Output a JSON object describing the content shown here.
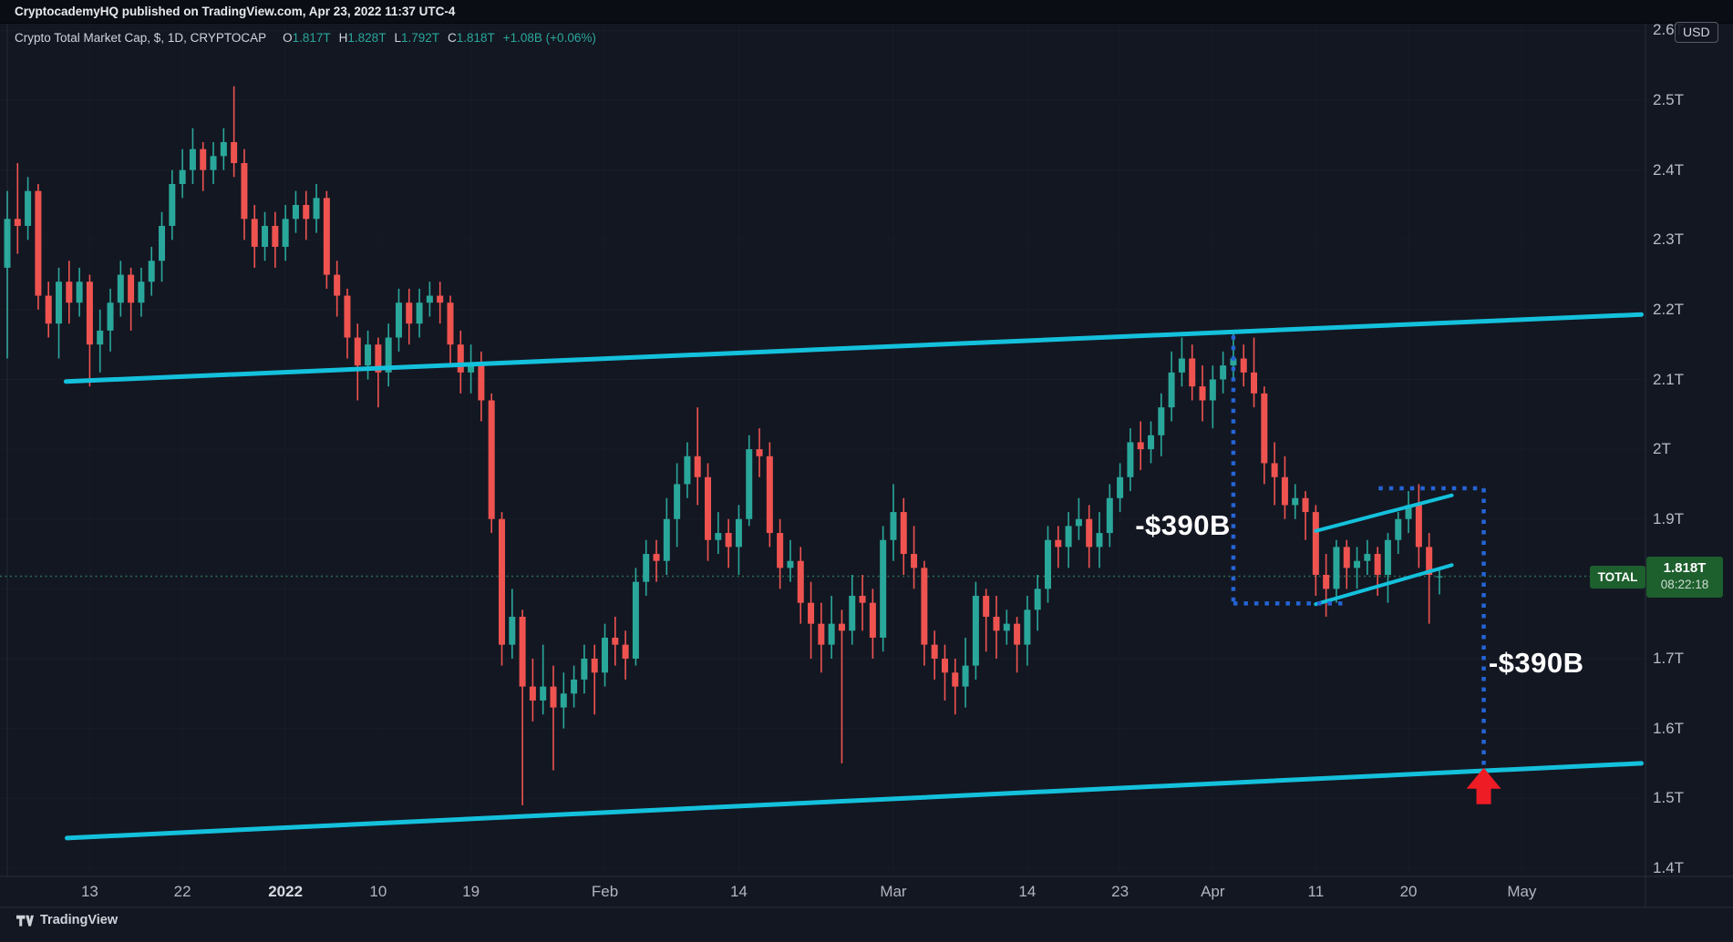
{
  "banner": {
    "text": "CryptocademyHQ published on TradingView.com, Apr 23, 2022 11:37 UTC-4"
  },
  "legend": {
    "title": "Crypto Total Market Cap, $, 1D, CRYPTOCAP",
    "items": [
      {
        "label": "O",
        "value": "1.817T"
      },
      {
        "label": "H",
        "value": "1.828T"
      },
      {
        "label": "L",
        "value": "1.792T"
      },
      {
        "label": "C",
        "value": "1.818T"
      }
    ],
    "change": "+1.08B (+0.06%)"
  },
  "price_scale": {
    "currency_button": "USD",
    "tick_values": [
      1.4,
      1.5,
      1.6,
      1.7,
      1.8,
      1.9,
      2.0,
      2.1,
      2.2,
      2.3,
      2.4,
      2.5,
      2.6
    ],
    "total_badge": "TOTAL",
    "last_price_badge": {
      "price": "1.818T",
      "countdown": "08:22:18"
    }
  },
  "time_scale": {
    "ticks": [
      {
        "label": "13",
        "date": "2021-12-13",
        "bold": false
      },
      {
        "label": "22",
        "date": "2021-12-22",
        "bold": false
      },
      {
        "label": "2022",
        "date": "2022-01-01",
        "bold": true
      },
      {
        "label": "10",
        "date": "2022-01-10",
        "bold": false
      },
      {
        "label": "19",
        "date": "2022-01-19",
        "bold": false
      },
      {
        "label": "Feb",
        "date": "2022-02-01",
        "bold": false
      },
      {
        "label": "14",
        "date": "2022-02-14",
        "bold": false
      },
      {
        "label": "Mar",
        "date": "2022-03-01",
        "bold": false
      },
      {
        "label": "14",
        "date": "2022-03-14",
        "bold": false
      },
      {
        "label": "23",
        "date": "2022-03-23",
        "bold": false
      },
      {
        "label": "Apr",
        "date": "2022-04-01",
        "bold": false
      },
      {
        "label": "11",
        "date": "2022-04-11",
        "bold": false
      },
      {
        "label": "20",
        "date": "2022-04-20",
        "bold": false
      },
      {
        "label": "May",
        "date": "2022-05-01",
        "bold": false
      }
    ]
  },
  "logo": {
    "text": "TradingView"
  },
  "colors": {
    "background": "#131722",
    "up": "#2aa79b",
    "down": "#ef5350",
    "trendline": "#14c1dc",
    "measure_dots": "#2464d4",
    "price_line": "#2a6a4f",
    "badge_green": "#1d5f2d",
    "arrow_red": "#ee1c25",
    "axis_text": "#b2b5be",
    "border": "#2a2e39"
  },
  "chart_data": {
    "type": "candlestick",
    "title": "Crypto Total Market Cap",
    "symbol": "CRYPTOCAP:TOTAL",
    "interval": "1D",
    "currency": "USD",
    "units": "trillions of USD",
    "xlim": [
      "2021-12-05",
      "2022-05-13"
    ],
    "ylim": [
      1.388,
      2.611
    ],
    "grid": false,
    "last_price": 1.818,
    "start_date": "2021-12-05",
    "candles_ohlc": [
      [
        2.26,
        2.37,
        2.13,
        2.33
      ],
      [
        2.33,
        2.41,
        2.28,
        2.32
      ],
      [
        2.32,
        2.39,
        2.3,
        2.37
      ],
      [
        2.37,
        2.38,
        2.2,
        2.22
      ],
      [
        2.22,
        2.24,
        2.16,
        2.18
      ],
      [
        2.18,
        2.26,
        2.13,
        2.24
      ],
      [
        2.24,
        2.27,
        2.18,
        2.21
      ],
      [
        2.21,
        2.26,
        2.19,
        2.24
      ],
      [
        2.24,
        2.25,
        2.09,
        2.15
      ],
      [
        2.15,
        2.2,
        2.11,
        2.17
      ],
      [
        2.17,
        2.23,
        2.14,
        2.21
      ],
      [
        2.21,
        2.27,
        2.19,
        2.25
      ],
      [
        2.25,
        2.26,
        2.17,
        2.21
      ],
      [
        2.21,
        2.26,
        2.19,
        2.24
      ],
      [
        2.24,
        2.29,
        2.22,
        2.27
      ],
      [
        2.27,
        2.34,
        2.24,
        2.32
      ],
      [
        2.32,
        2.4,
        2.3,
        2.38
      ],
      [
        2.38,
        2.43,
        2.36,
        2.4
      ],
      [
        2.4,
        2.46,
        2.38,
        2.43
      ],
      [
        2.43,
        2.44,
        2.37,
        2.4
      ],
      [
        2.4,
        2.44,
        2.38,
        2.42
      ],
      [
        2.42,
        2.46,
        2.4,
        2.44
      ],
      [
        2.44,
        2.52,
        2.39,
        2.41
      ],
      [
        2.41,
        2.43,
        2.3,
        2.33
      ],
      [
        2.33,
        2.35,
        2.26,
        2.29
      ],
      [
        2.29,
        2.34,
        2.27,
        2.32
      ],
      [
        2.32,
        2.34,
        2.26,
        2.29
      ],
      [
        2.29,
        2.35,
        2.27,
        2.33
      ],
      [
        2.33,
        2.37,
        2.31,
        2.35
      ],
      [
        2.35,
        2.37,
        2.3,
        2.33
      ],
      [
        2.33,
        2.38,
        2.31,
        2.36
      ],
      [
        2.36,
        2.37,
        2.23,
        2.25
      ],
      [
        2.25,
        2.27,
        2.19,
        2.22
      ],
      [
        2.22,
        2.23,
        2.13,
        2.16
      ],
      [
        2.16,
        2.18,
        2.07,
        2.12
      ],
      [
        2.12,
        2.17,
        2.1,
        2.15
      ],
      [
        2.15,
        2.16,
        2.06,
        2.11
      ],
      [
        2.11,
        2.18,
        2.09,
        2.16
      ],
      [
        2.16,
        2.23,
        2.14,
        2.21
      ],
      [
        2.21,
        2.23,
        2.15,
        2.18
      ],
      [
        2.18,
        2.23,
        2.16,
        2.21
      ],
      [
        2.21,
        2.24,
        2.19,
        2.22
      ],
      [
        2.22,
        2.24,
        2.18,
        2.21
      ],
      [
        2.21,
        2.22,
        2.12,
        2.15
      ],
      [
        2.15,
        2.17,
        2.08,
        2.11
      ],
      [
        2.11,
        2.15,
        2.08,
        2.12
      ],
      [
        2.12,
        2.14,
        2.04,
        2.07
      ],
      [
        2.07,
        2.08,
        1.88,
        1.9
      ],
      [
        1.9,
        1.91,
        1.69,
        1.72
      ],
      [
        1.72,
        1.8,
        1.7,
        1.76
      ],
      [
        1.76,
        1.77,
        1.49,
        1.66
      ],
      [
        1.66,
        1.7,
        1.61,
        1.64
      ],
      [
        1.64,
        1.72,
        1.62,
        1.66
      ],
      [
        1.66,
        1.69,
        1.54,
        1.63
      ],
      [
        1.63,
        1.68,
        1.6,
        1.65
      ],
      [
        1.65,
        1.69,
        1.63,
        1.67
      ],
      [
        1.67,
        1.72,
        1.65,
        1.7
      ],
      [
        1.7,
        1.72,
        1.62,
        1.68
      ],
      [
        1.68,
        1.75,
        1.66,
        1.73
      ],
      [
        1.73,
        1.76,
        1.69,
        1.72
      ],
      [
        1.72,
        1.74,
        1.67,
        1.7
      ],
      [
        1.7,
        1.83,
        1.69,
        1.81
      ],
      [
        1.81,
        1.87,
        1.79,
        1.85
      ],
      [
        1.85,
        1.87,
        1.81,
        1.84
      ],
      [
        1.84,
        1.93,
        1.82,
        1.9
      ],
      [
        1.9,
        1.98,
        1.86,
        1.95
      ],
      [
        1.95,
        2.01,
        1.93,
        1.99
      ],
      [
        1.99,
        2.06,
        1.92,
        1.96
      ],
      [
        1.96,
        1.98,
        1.84,
        1.87
      ],
      [
        1.87,
        1.91,
        1.85,
        1.88
      ],
      [
        1.88,
        1.9,
        1.83,
        1.86
      ],
      [
        1.86,
        1.92,
        1.82,
        1.9
      ],
      [
        1.9,
        2.02,
        1.89,
        2.0
      ],
      [
        2.0,
        2.03,
        1.96,
        1.99
      ],
      [
        1.99,
        2.01,
        1.86,
        1.88
      ],
      [
        1.88,
        1.9,
        1.8,
        1.83
      ],
      [
        1.83,
        1.87,
        1.81,
        1.84
      ],
      [
        1.84,
        1.86,
        1.75,
        1.78
      ],
      [
        1.78,
        1.81,
        1.7,
        1.75
      ],
      [
        1.75,
        1.78,
        1.68,
        1.72
      ],
      [
        1.72,
        1.79,
        1.7,
        1.75
      ],
      [
        1.75,
        1.77,
        1.55,
        1.74
      ],
      [
        1.74,
        1.82,
        1.72,
        1.79
      ],
      [
        1.79,
        1.82,
        1.74,
        1.78
      ],
      [
        1.78,
        1.8,
        1.7,
        1.73
      ],
      [
        1.73,
        1.89,
        1.71,
        1.87
      ],
      [
        1.87,
        1.95,
        1.84,
        1.91
      ],
      [
        1.91,
        1.93,
        1.82,
        1.85
      ],
      [
        1.85,
        1.89,
        1.8,
        1.83
      ],
      [
        1.83,
        1.84,
        1.69,
        1.72
      ],
      [
        1.72,
        1.74,
        1.67,
        1.7
      ],
      [
        1.7,
        1.72,
        1.64,
        1.68
      ],
      [
        1.68,
        1.7,
        1.62,
        1.66
      ],
      [
        1.66,
        1.73,
        1.63,
        1.69
      ],
      [
        1.69,
        1.81,
        1.67,
        1.79
      ],
      [
        1.79,
        1.8,
        1.71,
        1.76
      ],
      [
        1.76,
        1.79,
        1.7,
        1.74
      ],
      [
        1.74,
        1.77,
        1.72,
        1.75
      ],
      [
        1.75,
        1.76,
        1.68,
        1.72
      ],
      [
        1.72,
        1.79,
        1.69,
        1.77
      ],
      [
        1.77,
        1.82,
        1.74,
        1.8
      ],
      [
        1.8,
        1.89,
        1.78,
        1.87
      ],
      [
        1.87,
        1.89,
        1.83,
        1.86
      ],
      [
        1.86,
        1.91,
        1.83,
        1.89
      ],
      [
        1.89,
        1.93,
        1.87,
        1.9
      ],
      [
        1.9,
        1.92,
        1.83,
        1.86
      ],
      [
        1.86,
        1.91,
        1.83,
        1.88
      ],
      [
        1.88,
        1.95,
        1.86,
        1.93
      ],
      [
        1.93,
        1.98,
        1.91,
        1.96
      ],
      [
        1.96,
        2.03,
        1.94,
        2.01
      ],
      [
        2.01,
        2.04,
        1.97,
        2.0
      ],
      [
        2.0,
        2.04,
        1.98,
        2.02
      ],
      [
        2.02,
        2.08,
        1.99,
        2.06
      ],
      [
        2.06,
        2.14,
        2.04,
        2.11
      ],
      [
        2.11,
        2.16,
        2.09,
        2.13
      ],
      [
        2.13,
        2.15,
        2.07,
        2.09
      ],
      [
        2.09,
        2.12,
        2.04,
        2.07
      ],
      [
        2.07,
        2.12,
        2.03,
        2.1
      ],
      [
        2.1,
        2.14,
        2.08,
        2.12
      ],
      [
        2.12,
        2.17,
        2.1,
        2.13
      ],
      [
        2.13,
        2.15,
        2.09,
        2.11
      ],
      [
        2.11,
        2.16,
        2.06,
        2.08
      ],
      [
        2.08,
        2.09,
        1.95,
        1.98
      ],
      [
        1.98,
        2.01,
        1.92,
        1.96
      ],
      [
        1.96,
        1.99,
        1.9,
        1.92
      ],
      [
        1.92,
        1.95,
        1.9,
        1.93
      ],
      [
        1.93,
        1.94,
        1.87,
        1.91
      ],
      [
        1.91,
        1.92,
        1.79,
        1.82
      ],
      [
        1.82,
        1.85,
        1.76,
        1.8
      ],
      [
        1.8,
        1.87,
        1.78,
        1.86
      ],
      [
        1.86,
        1.87,
        1.8,
        1.83
      ],
      [
        1.83,
        1.86,
        1.8,
        1.84
      ],
      [
        1.84,
        1.87,
        1.82,
        1.85
      ],
      [
        1.85,
        1.86,
        1.79,
        1.82
      ],
      [
        1.82,
        1.88,
        1.78,
        1.87
      ],
      [
        1.87,
        1.91,
        1.85,
        1.9
      ],
      [
        1.9,
        1.94,
        1.88,
        1.92
      ],
      [
        1.92,
        1.95,
        1.83,
        1.86
      ],
      [
        1.86,
        1.88,
        1.75,
        1.82
      ],
      [
        1.817,
        1.828,
        1.792,
        1.818
      ]
    ],
    "annotations": {
      "trendlines": [
        {
          "name": "channel-top",
          "d1": 5.7,
          "p1": 2.097,
          "d2": 158.6,
          "p2": 2.193,
          "width": 5
        },
        {
          "name": "channel-bottom",
          "d1": 5.8,
          "p1": 1.443,
          "d2": 158.6,
          "p2": 1.55,
          "width": 5
        },
        {
          "name": "mini-channel-top",
          "d1": 127.0,
          "p1": 1.883,
          "d2": 140.2,
          "p2": 1.934,
          "width": 4
        },
        {
          "name": "mini-channel-bottom",
          "d1": 127.0,
          "p1": 1.778,
          "d2": 140.2,
          "p2": 1.834,
          "width": 4
        }
      ],
      "measure_lines": [
        {
          "name": "measure1-vertical",
          "d1": 119.0,
          "p1": 2.163,
          "d2": 119.0,
          "p2": 1.779
        },
        {
          "name": "measure1-horizontal",
          "d1": 119.0,
          "p1": 1.779,
          "d2": 129.7,
          "p2": 1.779
        },
        {
          "name": "measure2-horizontal",
          "d1": 133.1,
          "p1": 1.944,
          "d2": 143.3,
          "p2": 1.944
        },
        {
          "name": "measure2-vertical",
          "d1": 143.3,
          "p1": 1.944,
          "d2": 143.3,
          "p2": 1.545
        }
      ],
      "labels": [
        {
          "text": "-$390B",
          "d": 114.1,
          "price": 1.891
        },
        {
          "text": "-$390B",
          "d": 148.4,
          "price": 1.694
        }
      ],
      "arrow_up": {
        "d": 143.3,
        "price": 1.545
      }
    }
  }
}
